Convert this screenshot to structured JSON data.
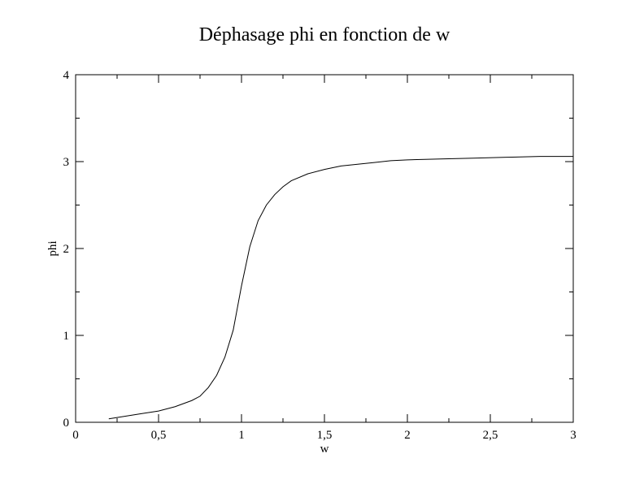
{
  "chart_data": {
    "type": "line",
    "title": "Déphasage phi en fonction de w",
    "xlabel": "w",
    "ylabel": "phi",
    "xlim": [
      0,
      3
    ],
    "ylim": [
      0,
      4
    ],
    "x_ticks": [
      "0",
      "0,5",
      "1",
      "1,5",
      "2",
      "2,5",
      "3"
    ],
    "y_ticks": [
      "0",
      "1",
      "2",
      "3",
      "4"
    ],
    "grid": false,
    "line_color": "#000000",
    "series": [
      {
        "x": [
          0.2,
          0.3,
          0.4,
          0.5,
          0.6,
          0.7,
          0.75,
          0.8,
          0.85,
          0.9,
          0.95,
          1.0,
          1.05,
          1.1,
          1.15,
          1.2,
          1.25,
          1.3,
          1.4,
          1.5,
          1.6,
          1.7,
          1.8,
          1.9,
          2.0,
          2.2,
          2.4,
          2.6,
          2.8,
          3.0
        ],
        "y": [
          0.04,
          0.07,
          0.1,
          0.13,
          0.18,
          0.25,
          0.3,
          0.4,
          0.54,
          0.75,
          1.06,
          1.57,
          2.02,
          2.32,
          2.5,
          2.62,
          2.71,
          2.78,
          2.86,
          2.91,
          2.95,
          2.97,
          2.99,
          3.01,
          3.02,
          3.03,
          3.04,
          3.05,
          3.06,
          3.06
        ]
      }
    ]
  }
}
